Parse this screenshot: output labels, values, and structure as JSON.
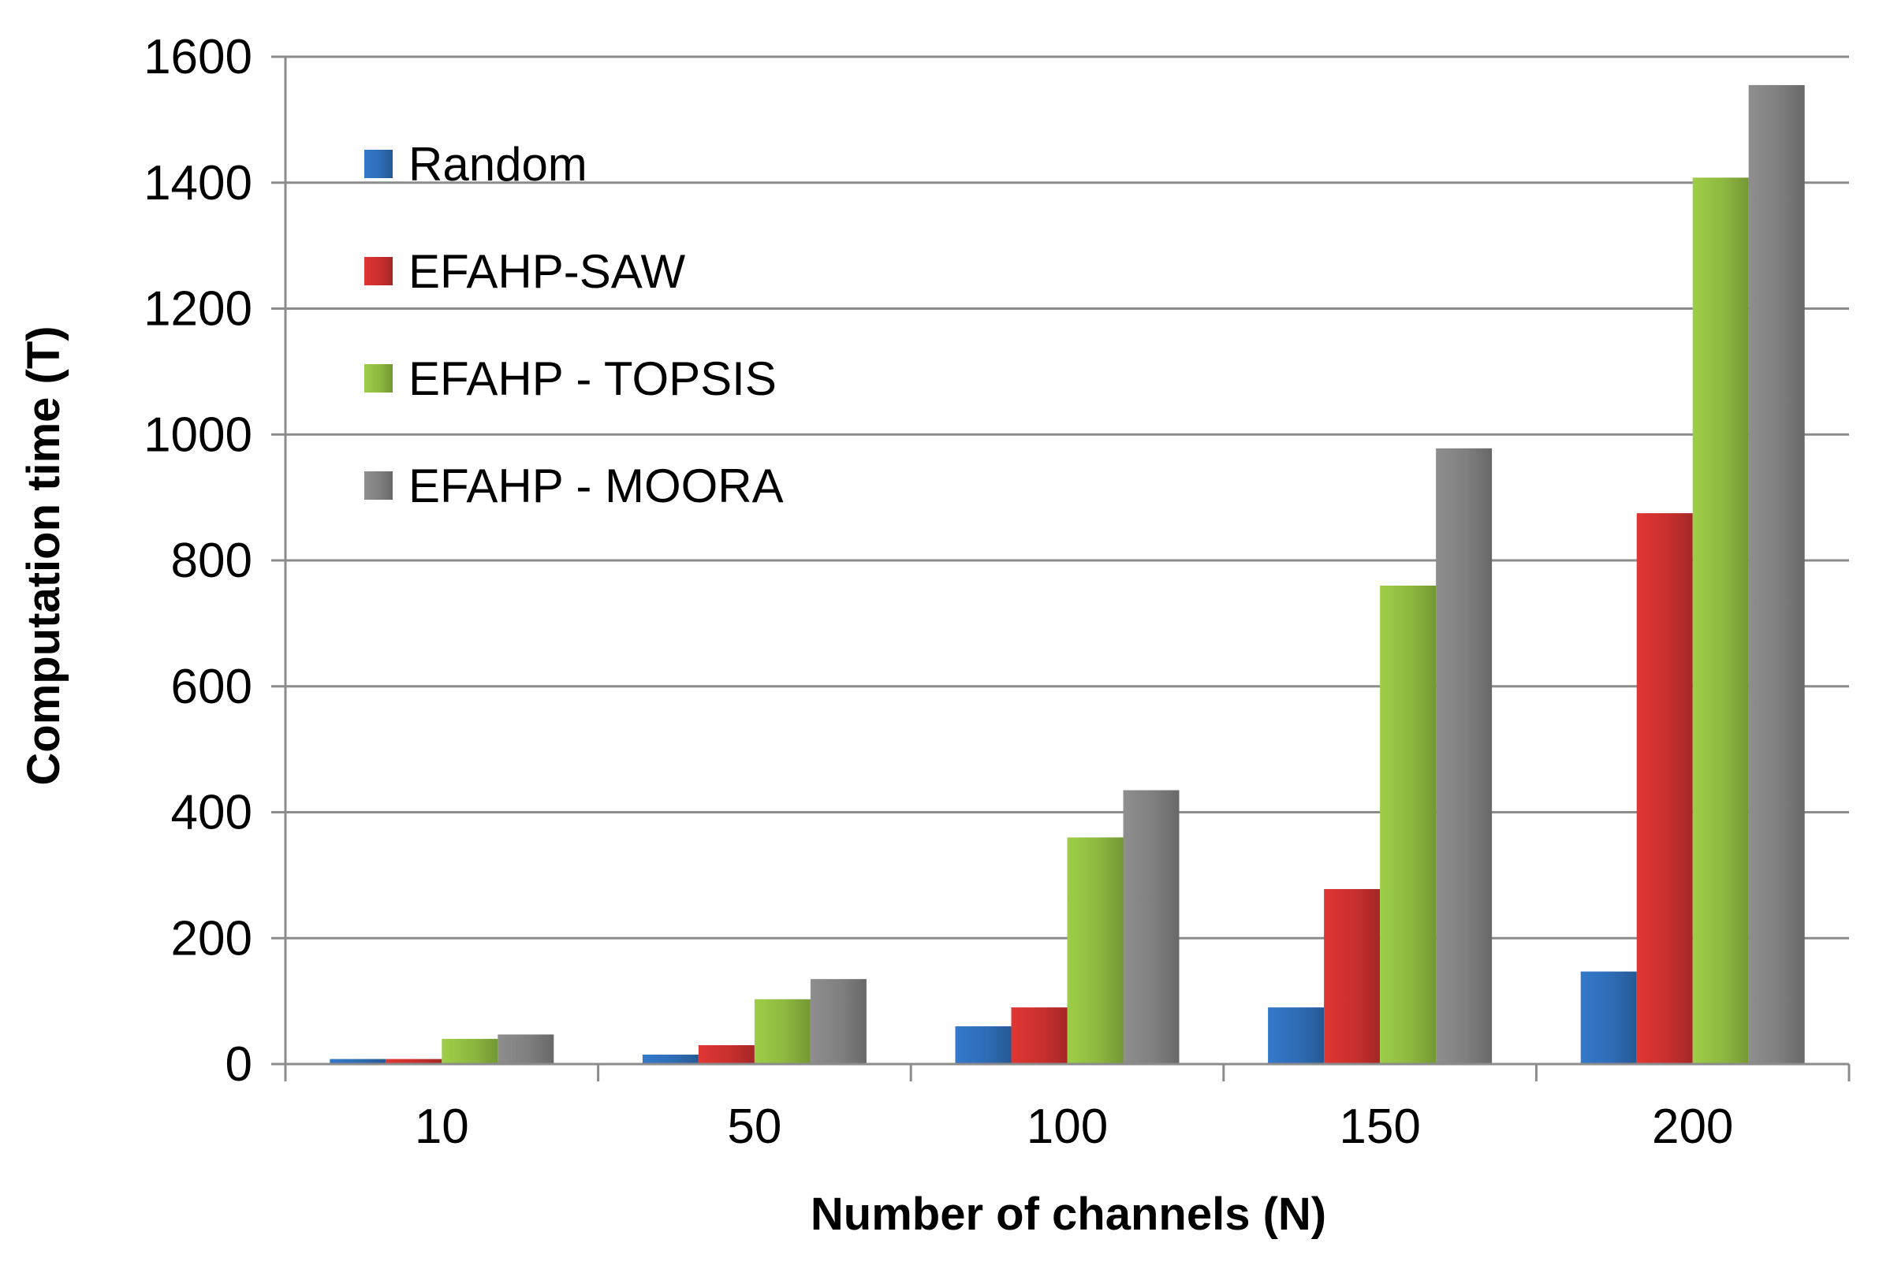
{
  "chart_data": {
    "type": "bar",
    "title": "",
    "xlabel": "Number of channels (N)",
    "ylabel": "Computation time (T)",
    "categories": [
      "10",
      "50",
      "100",
      "150",
      "200"
    ],
    "ylim": [
      0,
      1600
    ],
    "yticks": [
      0,
      200,
      400,
      600,
      800,
      1000,
      1200,
      1400,
      1600
    ],
    "grid": true,
    "legend_position": "top-left",
    "series": [
      {
        "name": "Random",
        "color": "#2E6CB5",
        "values": [
          8,
          15,
          60,
          90,
          147
        ]
      },
      {
        "name": "EFAHP-SAW",
        "color": "#C8302E",
        "values": [
          8,
          30,
          90,
          278,
          875
        ]
      },
      {
        "name": "EFAHP - TOPSIS",
        "color": "#8DB840",
        "values": [
          40,
          103,
          360,
          760,
          1408
        ]
      },
      {
        "name": "EFAHP - MOORA",
        "color": "#7F7F7F",
        "values": [
          47,
          135,
          435,
          978,
          1555
        ]
      }
    ]
  }
}
